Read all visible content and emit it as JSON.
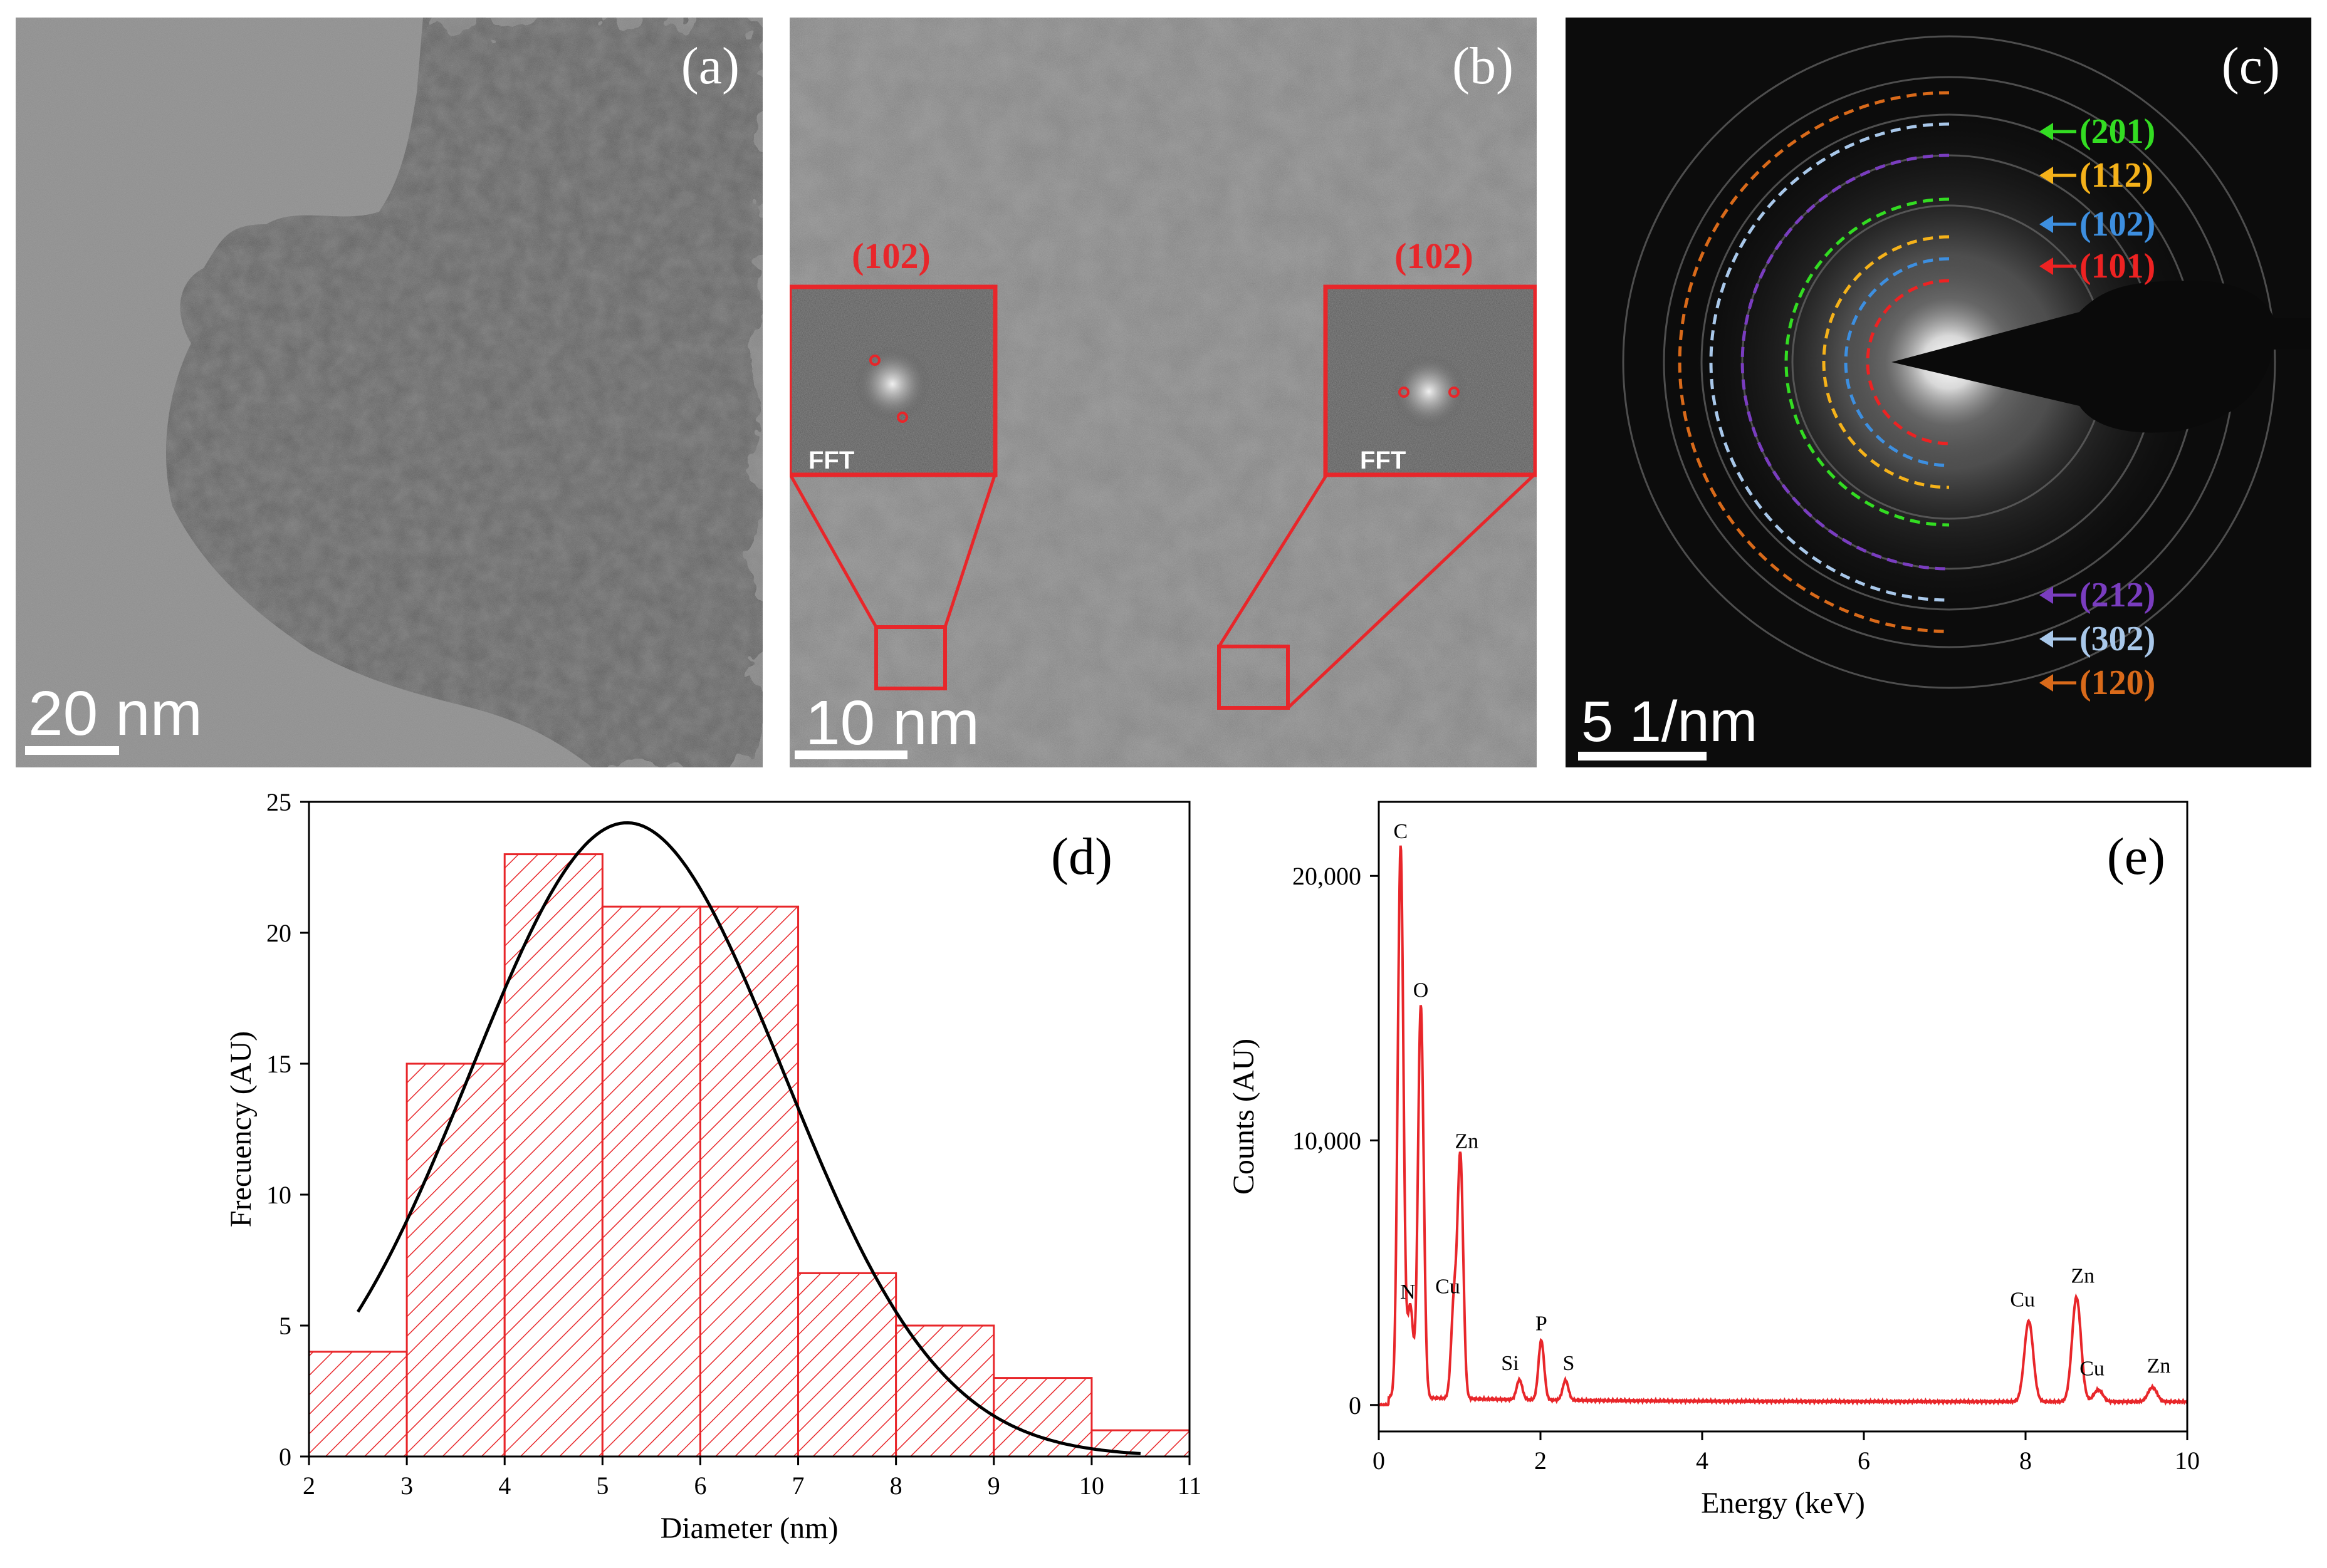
{
  "panels": {
    "a": {
      "label": "(a)",
      "scalebar": "20 nm"
    },
    "b": {
      "label": "(b)",
      "scalebar": "10 nm",
      "insets": [
        {
          "plane": "(102)",
          "caption": "FFT"
        },
        {
          "plane": "(102)",
          "caption": "FFT"
        }
      ]
    },
    "c": {
      "label": "(c)",
      "scalebar": "5 1/nm",
      "rings": [
        {
          "plane": "(201)",
          "color": "#33dd22"
        },
        {
          "plane": "(112)",
          "color": "#f5b21a"
        },
        {
          "plane": "(102)",
          "color": "#3d8fe0"
        },
        {
          "plane": "(101)",
          "color": "#ee2222"
        },
        {
          "plane": "(212)",
          "color": "#7a3dc0"
        },
        {
          "plane": "(302)",
          "color": "#a9c8ea"
        },
        {
          "plane": "(120)",
          "color": "#d96a1a"
        }
      ]
    }
  },
  "chart_data": [
    {
      "panel": "(d)",
      "type": "bar",
      "xlabel": "Diameter (nm)",
      "ylabel": "Frecuency (AU)",
      "xlim": [
        2,
        11
      ],
      "ylim": [
        0,
        25
      ],
      "xticks": [
        "2",
        "3",
        "4",
        "5",
        "6",
        "7",
        "8",
        "9",
        "10",
        "11"
      ],
      "yticks": [
        "0",
        "5",
        "10",
        "15",
        "20",
        "25"
      ],
      "bins": [
        [
          2,
          3
        ],
        [
          3,
          4
        ],
        [
          4,
          5
        ],
        [
          5,
          6
        ],
        [
          6,
          7
        ],
        [
          7,
          8
        ],
        [
          8,
          9
        ],
        [
          9,
          10
        ],
        [
          10,
          11
        ]
      ],
      "values": [
        4,
        15,
        23,
        21,
        21,
        7,
        5,
        3,
        1
      ],
      "fit": {
        "type": "gaussian",
        "center": 5.25,
        "peak": 24.2,
        "sigma": 1.6,
        "range": [
          2.5,
          10.5
        ]
      },
      "bar_color": "#e8262a"
    },
    {
      "panel": "(e)",
      "type": "line",
      "xlabel": "Energy (keV)",
      "ylabel": "Counts (AU)",
      "xlim": [
        0,
        10
      ],
      "ylim": [
        -1000,
        22800
      ],
      "xticks": [
        "0",
        "2",
        "4",
        "6",
        "8",
        "10"
      ],
      "yticks": [
        "0",
        "10,000",
        "20,000"
      ],
      "line_color": "#e8262a",
      "peaks": [
        {
          "label": "C",
          "x": 0.27,
          "y": 21000
        },
        {
          "label": "N",
          "x": 0.39,
          "y": 3600
        },
        {
          "label": "O",
          "x": 0.52,
          "y": 15000
        },
        {
          "label": "Cu",
          "x": 0.93,
          "y": 3700
        },
        {
          "label": "Zn",
          "x": 1.01,
          "y": 9200
        },
        {
          "label": "Si",
          "x": 1.74,
          "y": 900
        },
        {
          "label": "P",
          "x": 2.01,
          "y": 2400
        },
        {
          "label": "S",
          "x": 2.31,
          "y": 900
        },
        {
          "label": "Cu",
          "x": 8.04,
          "y": 3200
        },
        {
          "label": "Zn",
          "x": 8.63,
          "y": 4100
        },
        {
          "label": "Cu",
          "x": 8.9,
          "y": 600
        },
        {
          "label": "Zn",
          "x": 9.57,
          "y": 700
        }
      ]
    }
  ]
}
